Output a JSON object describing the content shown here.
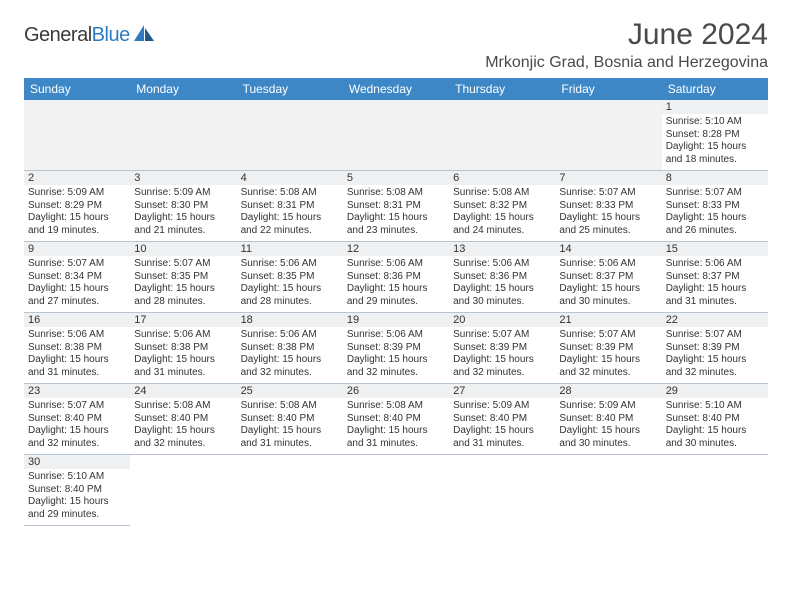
{
  "brand": {
    "name_a": "General",
    "name_b": "Blue"
  },
  "title": "June 2024",
  "location": "Mrkonjic Grad, Bosnia and Herzegovina",
  "colors": {
    "header_bg": "#3d87c7",
    "header_fg": "#ffffff",
    "daynum_bg": "#eef0f2",
    "border": "#b8c4cf",
    "text": "#333333",
    "brand_gray": "#3a3a3a",
    "brand_blue": "#2f7bbf"
  },
  "weekdays": [
    "Sunday",
    "Monday",
    "Tuesday",
    "Wednesday",
    "Thursday",
    "Friday",
    "Saturday"
  ],
  "weeks": [
    [
      null,
      null,
      null,
      null,
      null,
      null,
      {
        "n": "1",
        "sr": "Sunrise: 5:10 AM",
        "ss": "Sunset: 8:28 PM",
        "d1": "Daylight: 15 hours",
        "d2": "and 18 minutes."
      }
    ],
    [
      {
        "n": "2",
        "sr": "Sunrise: 5:09 AM",
        "ss": "Sunset: 8:29 PM",
        "d1": "Daylight: 15 hours",
        "d2": "and 19 minutes."
      },
      {
        "n": "3",
        "sr": "Sunrise: 5:09 AM",
        "ss": "Sunset: 8:30 PM",
        "d1": "Daylight: 15 hours",
        "d2": "and 21 minutes."
      },
      {
        "n": "4",
        "sr": "Sunrise: 5:08 AM",
        "ss": "Sunset: 8:31 PM",
        "d1": "Daylight: 15 hours",
        "d2": "and 22 minutes."
      },
      {
        "n": "5",
        "sr": "Sunrise: 5:08 AM",
        "ss": "Sunset: 8:31 PM",
        "d1": "Daylight: 15 hours",
        "d2": "and 23 minutes."
      },
      {
        "n": "6",
        "sr": "Sunrise: 5:08 AM",
        "ss": "Sunset: 8:32 PM",
        "d1": "Daylight: 15 hours",
        "d2": "and 24 minutes."
      },
      {
        "n": "7",
        "sr": "Sunrise: 5:07 AM",
        "ss": "Sunset: 8:33 PM",
        "d1": "Daylight: 15 hours",
        "d2": "and 25 minutes."
      },
      {
        "n": "8",
        "sr": "Sunrise: 5:07 AM",
        "ss": "Sunset: 8:33 PM",
        "d1": "Daylight: 15 hours",
        "d2": "and 26 minutes."
      }
    ],
    [
      {
        "n": "9",
        "sr": "Sunrise: 5:07 AM",
        "ss": "Sunset: 8:34 PM",
        "d1": "Daylight: 15 hours",
        "d2": "and 27 minutes."
      },
      {
        "n": "10",
        "sr": "Sunrise: 5:07 AM",
        "ss": "Sunset: 8:35 PM",
        "d1": "Daylight: 15 hours",
        "d2": "and 28 minutes."
      },
      {
        "n": "11",
        "sr": "Sunrise: 5:06 AM",
        "ss": "Sunset: 8:35 PM",
        "d1": "Daylight: 15 hours",
        "d2": "and 28 minutes."
      },
      {
        "n": "12",
        "sr": "Sunrise: 5:06 AM",
        "ss": "Sunset: 8:36 PM",
        "d1": "Daylight: 15 hours",
        "d2": "and 29 minutes."
      },
      {
        "n": "13",
        "sr": "Sunrise: 5:06 AM",
        "ss": "Sunset: 8:36 PM",
        "d1": "Daylight: 15 hours",
        "d2": "and 30 minutes."
      },
      {
        "n": "14",
        "sr": "Sunrise: 5:06 AM",
        "ss": "Sunset: 8:37 PM",
        "d1": "Daylight: 15 hours",
        "d2": "and 30 minutes."
      },
      {
        "n": "15",
        "sr": "Sunrise: 5:06 AM",
        "ss": "Sunset: 8:37 PM",
        "d1": "Daylight: 15 hours",
        "d2": "and 31 minutes."
      }
    ],
    [
      {
        "n": "16",
        "sr": "Sunrise: 5:06 AM",
        "ss": "Sunset: 8:38 PM",
        "d1": "Daylight: 15 hours",
        "d2": "and 31 minutes."
      },
      {
        "n": "17",
        "sr": "Sunrise: 5:06 AM",
        "ss": "Sunset: 8:38 PM",
        "d1": "Daylight: 15 hours",
        "d2": "and 31 minutes."
      },
      {
        "n": "18",
        "sr": "Sunrise: 5:06 AM",
        "ss": "Sunset: 8:38 PM",
        "d1": "Daylight: 15 hours",
        "d2": "and 32 minutes."
      },
      {
        "n": "19",
        "sr": "Sunrise: 5:06 AM",
        "ss": "Sunset: 8:39 PM",
        "d1": "Daylight: 15 hours",
        "d2": "and 32 minutes."
      },
      {
        "n": "20",
        "sr": "Sunrise: 5:07 AM",
        "ss": "Sunset: 8:39 PM",
        "d1": "Daylight: 15 hours",
        "d2": "and 32 minutes."
      },
      {
        "n": "21",
        "sr": "Sunrise: 5:07 AM",
        "ss": "Sunset: 8:39 PM",
        "d1": "Daylight: 15 hours",
        "d2": "and 32 minutes."
      },
      {
        "n": "22",
        "sr": "Sunrise: 5:07 AM",
        "ss": "Sunset: 8:39 PM",
        "d1": "Daylight: 15 hours",
        "d2": "and 32 minutes."
      }
    ],
    [
      {
        "n": "23",
        "sr": "Sunrise: 5:07 AM",
        "ss": "Sunset: 8:40 PM",
        "d1": "Daylight: 15 hours",
        "d2": "and 32 minutes."
      },
      {
        "n": "24",
        "sr": "Sunrise: 5:08 AM",
        "ss": "Sunset: 8:40 PM",
        "d1": "Daylight: 15 hours",
        "d2": "and 32 minutes."
      },
      {
        "n": "25",
        "sr": "Sunrise: 5:08 AM",
        "ss": "Sunset: 8:40 PM",
        "d1": "Daylight: 15 hours",
        "d2": "and 31 minutes."
      },
      {
        "n": "26",
        "sr": "Sunrise: 5:08 AM",
        "ss": "Sunset: 8:40 PM",
        "d1": "Daylight: 15 hours",
        "d2": "and 31 minutes."
      },
      {
        "n": "27",
        "sr": "Sunrise: 5:09 AM",
        "ss": "Sunset: 8:40 PM",
        "d1": "Daylight: 15 hours",
        "d2": "and 31 minutes."
      },
      {
        "n": "28",
        "sr": "Sunrise: 5:09 AM",
        "ss": "Sunset: 8:40 PM",
        "d1": "Daylight: 15 hours",
        "d2": "and 30 minutes."
      },
      {
        "n": "29",
        "sr": "Sunrise: 5:10 AM",
        "ss": "Sunset: 8:40 PM",
        "d1": "Daylight: 15 hours",
        "d2": "and 30 minutes."
      }
    ],
    [
      {
        "n": "30",
        "sr": "Sunrise: 5:10 AM",
        "ss": "Sunset: 8:40 PM",
        "d1": "Daylight: 15 hours",
        "d2": "and 29 minutes."
      },
      null,
      null,
      null,
      null,
      null,
      null
    ]
  ]
}
